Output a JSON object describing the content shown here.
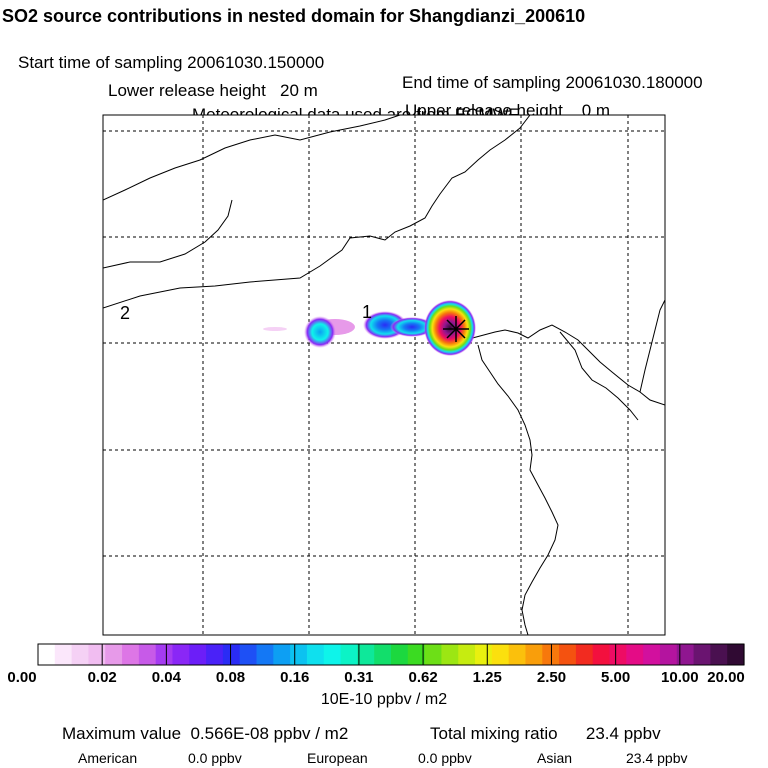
{
  "header": {
    "title": "SO2 source contributions in nested domain for Shangdianzi_200610",
    "start_time": "Start time of sampling 20061030.150000",
    "end_time": "End time of sampling 20061030.180000",
    "lower_height": "Lower release height   20 m",
    "upper_height": "Upper release height    0 m",
    "met_data": "Meteorological data used are from ECMWF"
  },
  "map": {
    "region_labels": [
      "2",
      "1"
    ],
    "station_marker": "station-star-marker"
  },
  "colorbar": {
    "tick_labels": [
      "0.00",
      "0.02",
      "0.04",
      "0.08",
      "0.16",
      "0.31",
      "0.62",
      "1.25",
      "2.50",
      "5.00",
      "10.00",
      "20.00"
    ],
    "colors": [
      "#ffffff",
      "#fbe7fb",
      "#f5d1f5",
      "#f1bdf1",
      "#e79ae9",
      "#dd76e6",
      "#c75ae8",
      "#a53bf1",
      "#8a27f6",
      "#6c1ef8",
      "#4a22f8",
      "#2a2cf5",
      "#1e50f5",
      "#1478f5",
      "#0d9ff3",
      "#0cc2f0",
      "#0fe0ee",
      "#0ef4ea",
      "#0cf3c6",
      "#0ee89a",
      "#12de6b",
      "#1cd83f",
      "#3bdb22",
      "#6ddf17",
      "#9ce613",
      "#c6ec10",
      "#e9f00f",
      "#fbe00e",
      "#fbc00c",
      "#f99e0b",
      "#f7780c",
      "#f45210",
      "#f22b20",
      "#f3103e",
      "#ee0c64",
      "#e40c86",
      "#d2109e",
      "#b4149f",
      "#8f1690",
      "#6a1470",
      "#4a1050",
      "#300a33"
    ],
    "units": "10E-10 ppbv / m2"
  },
  "stats": {
    "max_value": "Maximum value  0.566E-08 ppbv / m2",
    "total_mixing": "Total mixing ratio      23.4 ppbv",
    "american_label": "American",
    "american_value": "0.0 ppbv",
    "european_label": "European",
    "european_value": "0.0 ppbv",
    "asian_label": "Asian",
    "asian_value": "23.4 ppbv"
  }
}
